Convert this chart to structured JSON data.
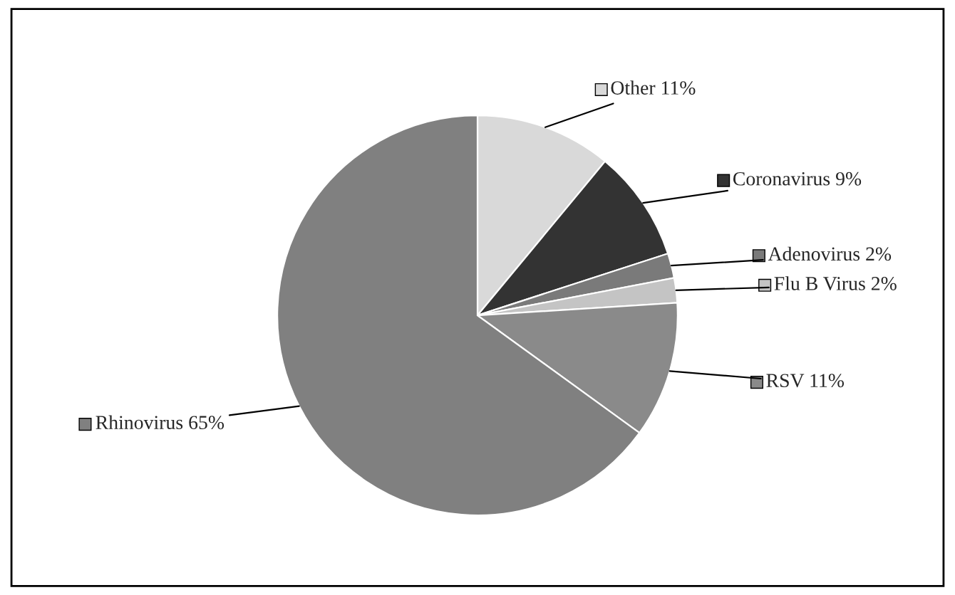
{
  "chart_data": {
    "type": "pie",
    "categories": [
      "Other",
      "Coronavirus",
      "Adenovirus",
      "Flu B Virus",
      "RSV",
      "Rhinovirus"
    ],
    "values": [
      11,
      9,
      2,
      2,
      11,
      65
    ],
    "value_labels": [
      "11%",
      "9%",
      "2%",
      "2%",
      "11%",
      "65%"
    ],
    "colors": [
      "#d9d9d9",
      "#333333",
      "#7a7a7a",
      "#c4c4c4",
      "#8a8a8a",
      "#808080"
    ],
    "legend": "right"
  }
}
